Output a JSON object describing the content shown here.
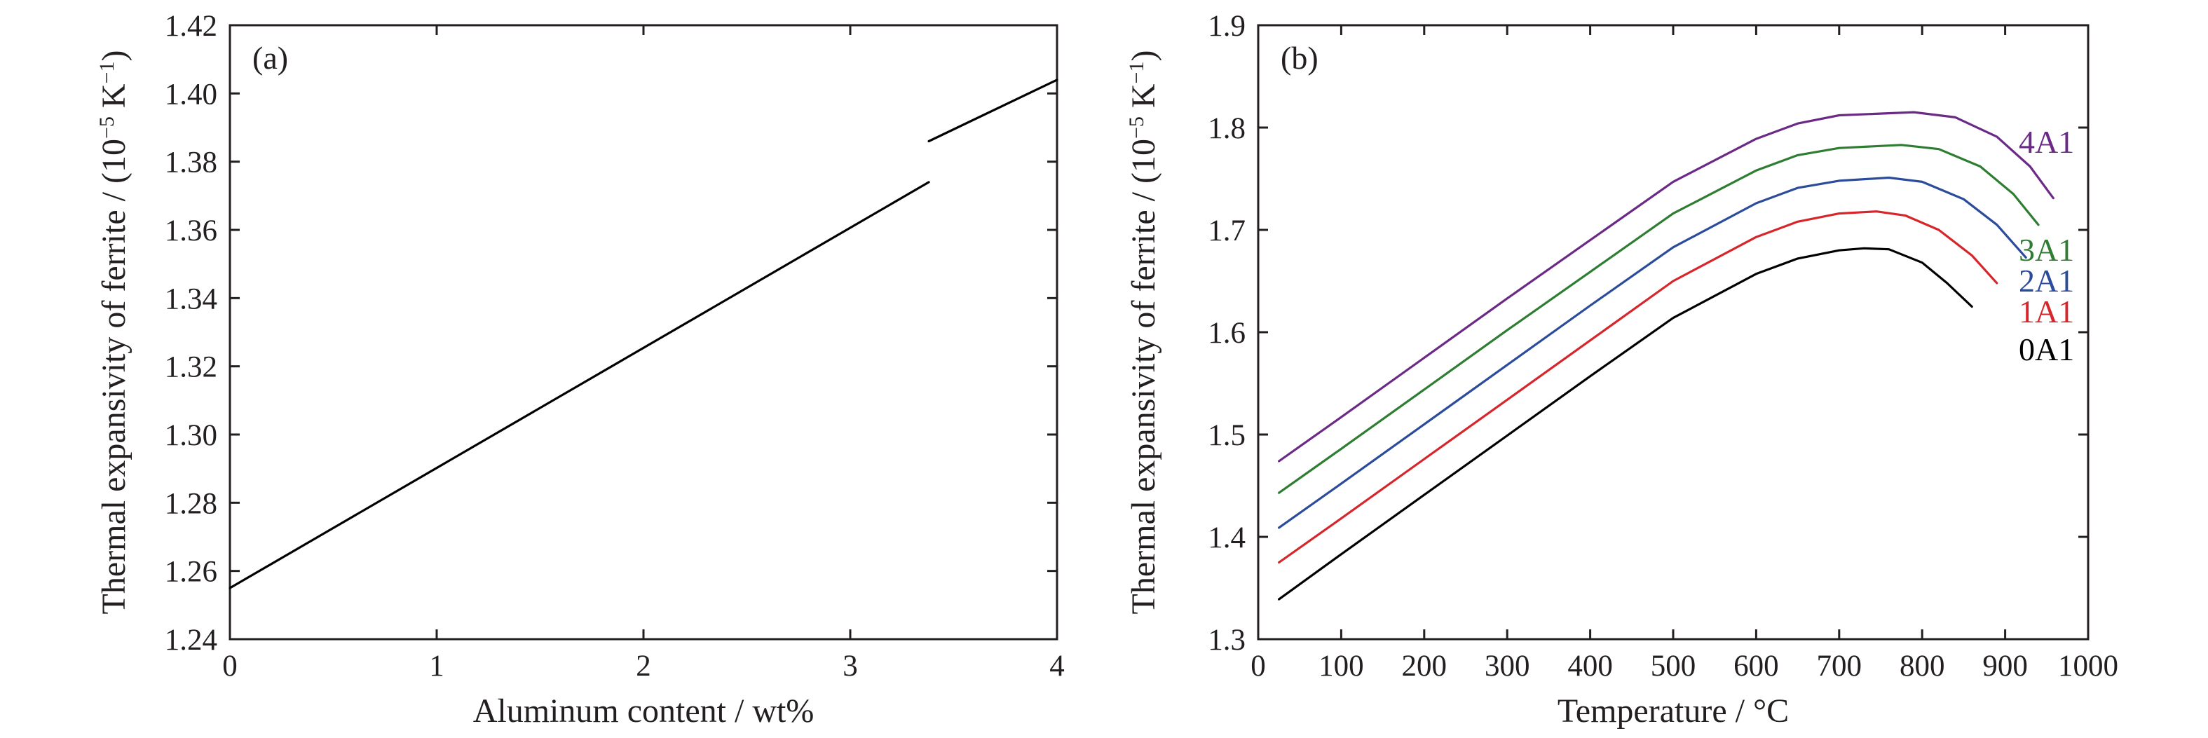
{
  "chart_data": [
    {
      "type": "line",
      "panel_label": "(a)",
      "xlabel": "Aluminum content / wt%",
      "ylabel": "Thermal expansivity of ferrite / (10",
      "ylabel_sup1": "−5",
      "ylabel_mid": " K",
      "ylabel_sup2": "−1",
      "ylabel_end": ")",
      "xlim": [
        0,
        4
      ],
      "ylim": [
        1.24,
        1.42
      ],
      "xticks": [
        "0",
        "1",
        "2",
        "3",
        "4"
      ],
      "yticks": [
        "1.24",
        "1.26",
        "1.28",
        "1.30",
        "1.32",
        "1.34",
        "1.36",
        "1.38",
        "1.40",
        "1.42"
      ],
      "series": [
        {
          "color": "#000000",
          "points": [
            [
              0,
              1.255
            ],
            [
              3.38,
              1.374
            ]
          ]
        },
        {
          "color": "#000000",
          "points": [
            [
              3.38,
              1.386
            ],
            [
              4,
              1.404
            ]
          ]
        }
      ]
    },
    {
      "type": "line",
      "panel_label": "(b)",
      "xlabel": "Temperature / °C",
      "ylabel": "Thermal expansivity of ferrite / (10",
      "ylabel_sup1": "−5",
      "ylabel_mid": " K",
      "ylabel_sup2": "−1",
      "ylabel_end": ")",
      "xlim": [
        0,
        1000
      ],
      "ylim": [
        1.3,
        1.9
      ],
      "xticks": [
        "0",
        "100",
        "200",
        "300",
        "400",
        "500",
        "600",
        "700",
        "800",
        "900",
        "1000"
      ],
      "yticks": [
        "1.3",
        "1.4",
        "1.5",
        "1.6",
        "1.7",
        "1.8",
        "1.9"
      ],
      "series": [
        {
          "name": "0A1",
          "color": "#000000",
          "points": [
            [
              25,
              1.339
            ],
            [
              100,
              1.383
            ],
            [
              200,
              1.441
            ],
            [
              300,
              1.499
            ],
            [
              400,
              1.557
            ],
            [
              500,
              1.614
            ],
            [
              600,
              1.657
            ],
            [
              650,
              1.672
            ],
            [
              700,
              1.68
            ],
            [
              730,
              1.682
            ],
            [
              760,
              1.681
            ],
            [
              800,
              1.668
            ],
            [
              830,
              1.648
            ],
            [
              860,
              1.625
            ]
          ]
        },
        {
          "name": "1A1",
          "color": "#d7262b",
          "points": [
            [
              25,
              1.375
            ],
            [
              100,
              1.418
            ],
            [
              200,
              1.476
            ],
            [
              300,
              1.534
            ],
            [
              400,
              1.592
            ],
            [
              500,
              1.65
            ],
            [
              600,
              1.693
            ],
            [
              650,
              1.708
            ],
            [
              700,
              1.716
            ],
            [
              745,
              1.718
            ],
            [
              780,
              1.714
            ],
            [
              820,
              1.7
            ],
            [
              860,
              1.675
            ],
            [
              890,
              1.648
            ]
          ]
        },
        {
          "name": "2A1",
          "color": "#2b4b9b",
          "points": [
            [
              25,
              1.409
            ],
            [
              100,
              1.452
            ],
            [
              200,
              1.51
            ],
            [
              300,
              1.568
            ],
            [
              400,
              1.626
            ],
            [
              500,
              1.683
            ],
            [
              600,
              1.726
            ],
            [
              650,
              1.741
            ],
            [
              700,
              1.748
            ],
            [
              760,
              1.751
            ],
            [
              800,
              1.747
            ],
            [
              850,
              1.73
            ],
            [
              890,
              1.705
            ],
            [
              925,
              1.673
            ]
          ]
        },
        {
          "name": "3A1",
          "color": "#2e7d32",
          "points": [
            [
              25,
              1.443
            ],
            [
              100,
              1.486
            ],
            [
              200,
              1.544
            ],
            [
              300,
              1.602
            ],
            [
              400,
              1.659
            ],
            [
              500,
              1.716
            ],
            [
              600,
              1.758
            ],
            [
              650,
              1.773
            ],
            [
              700,
              1.78
            ],
            [
              775,
              1.783
            ],
            [
              820,
              1.779
            ],
            [
              870,
              1.762
            ],
            [
              910,
              1.735
            ],
            [
              940,
              1.705
            ]
          ]
        },
        {
          "name": "4A1",
          "color": "#6a2a86",
          "points": [
            [
              25,
              1.474
            ],
            [
              100,
              1.517
            ],
            [
              200,
              1.575
            ],
            [
              300,
              1.633
            ],
            [
              400,
              1.69
            ],
            [
              500,
              1.747
            ],
            [
              600,
              1.789
            ],
            [
              650,
              1.804
            ],
            [
              700,
              1.812
            ],
            [
              790,
              1.815
            ],
            [
              840,
              1.81
            ],
            [
              890,
              1.791
            ],
            [
              930,
              1.762
            ],
            [
              958,
              1.731
            ]
          ]
        }
      ]
    }
  ]
}
